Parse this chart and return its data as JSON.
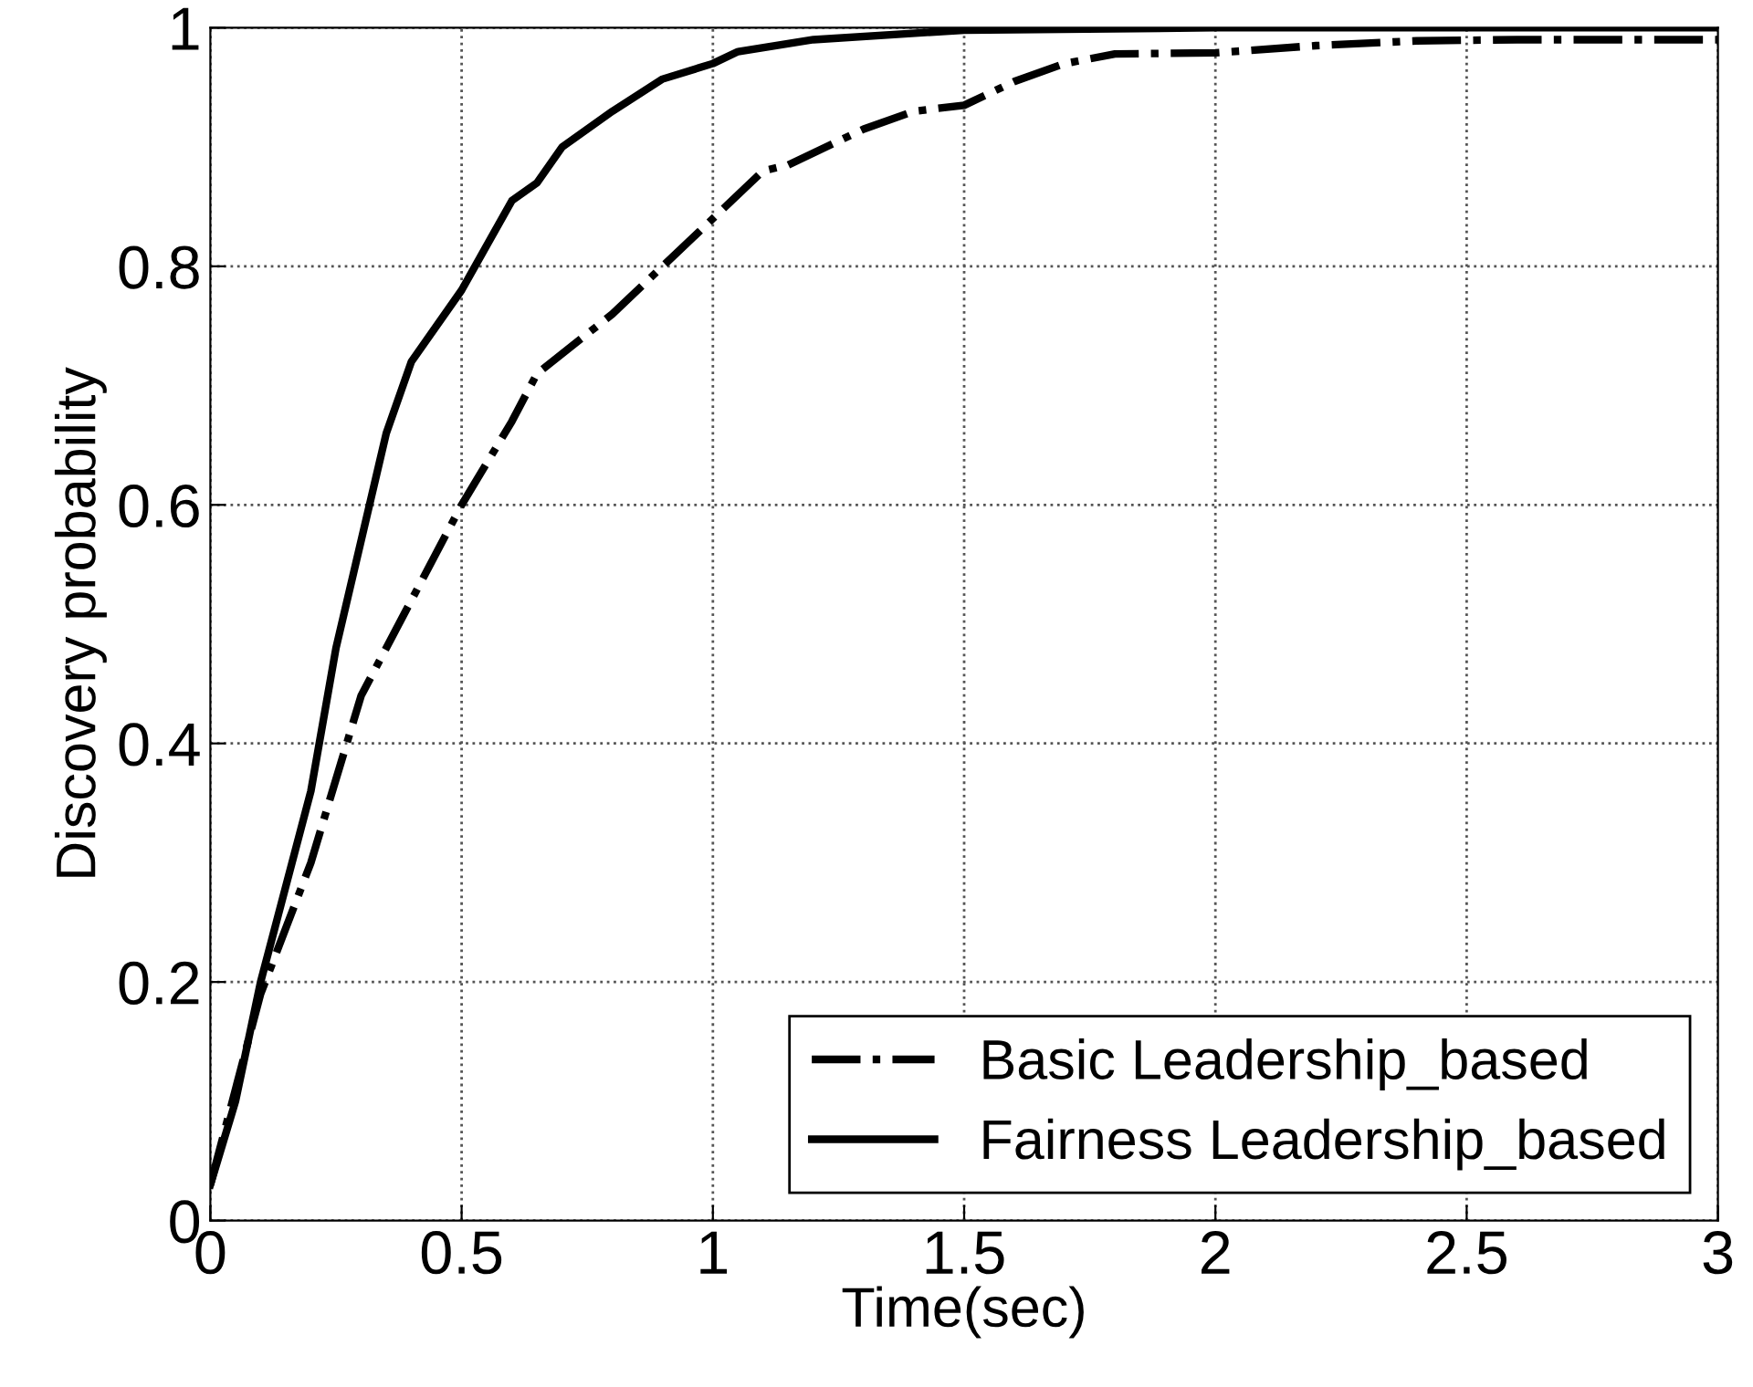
{
  "chart_data": {
    "type": "line",
    "xlabel": "Time(sec)",
    "ylabel": "Discovery probability",
    "xlim": [
      0,
      3
    ],
    "ylim": [
      0,
      1
    ],
    "xticks": [
      0,
      0.5,
      1,
      1.5,
      2,
      2.5,
      3
    ],
    "yticks": [
      0,
      0.2,
      0.4,
      0.6,
      0.8,
      1
    ],
    "grid": true,
    "legend": "bottom right",
    "series": [
      {
        "name": "Basic Leadership_based",
        "color": "#000000",
        "line_style": "dashdot",
        "x": [
          0,
          0.1,
          0.2,
          0.3,
          0.4,
          0.5,
          0.6,
          0.65,
          0.8,
          0.9,
          1.0,
          1.1,
          1.15,
          1.3,
          1.4,
          1.5,
          1.6,
          1.7,
          1.8,
          2.0,
          2.2,
          2.4,
          2.6,
          3.0
        ],
        "values": [
          0.03,
          0.19,
          0.3,
          0.44,
          0.52,
          0.6,
          0.67,
          0.71,
          0.76,
          0.8,
          0.84,
          0.88,
          0.885,
          0.915,
          0.93,
          0.935,
          0.955,
          0.97,
          0.978,
          0.979,
          0.985,
          0.989,
          0.99,
          0.99
        ]
      },
      {
        "name": "Fairness Leadership_based",
        "color": "#000000",
        "line_style": "solid",
        "x": [
          0,
          0.05,
          0.1,
          0.2,
          0.25,
          0.35,
          0.4,
          0.5,
          0.6,
          0.65,
          0.7,
          0.8,
          0.9,
          1.0,
          1.05,
          1.2,
          1.5,
          2.0,
          3.0
        ],
        "values": [
          0.03,
          0.1,
          0.2,
          0.36,
          0.48,
          0.66,
          0.72,
          0.78,
          0.855,
          0.87,
          0.9,
          0.93,
          0.957,
          0.97,
          0.98,
          0.99,
          0.998,
          1,
          1
        ]
      }
    ]
  }
}
